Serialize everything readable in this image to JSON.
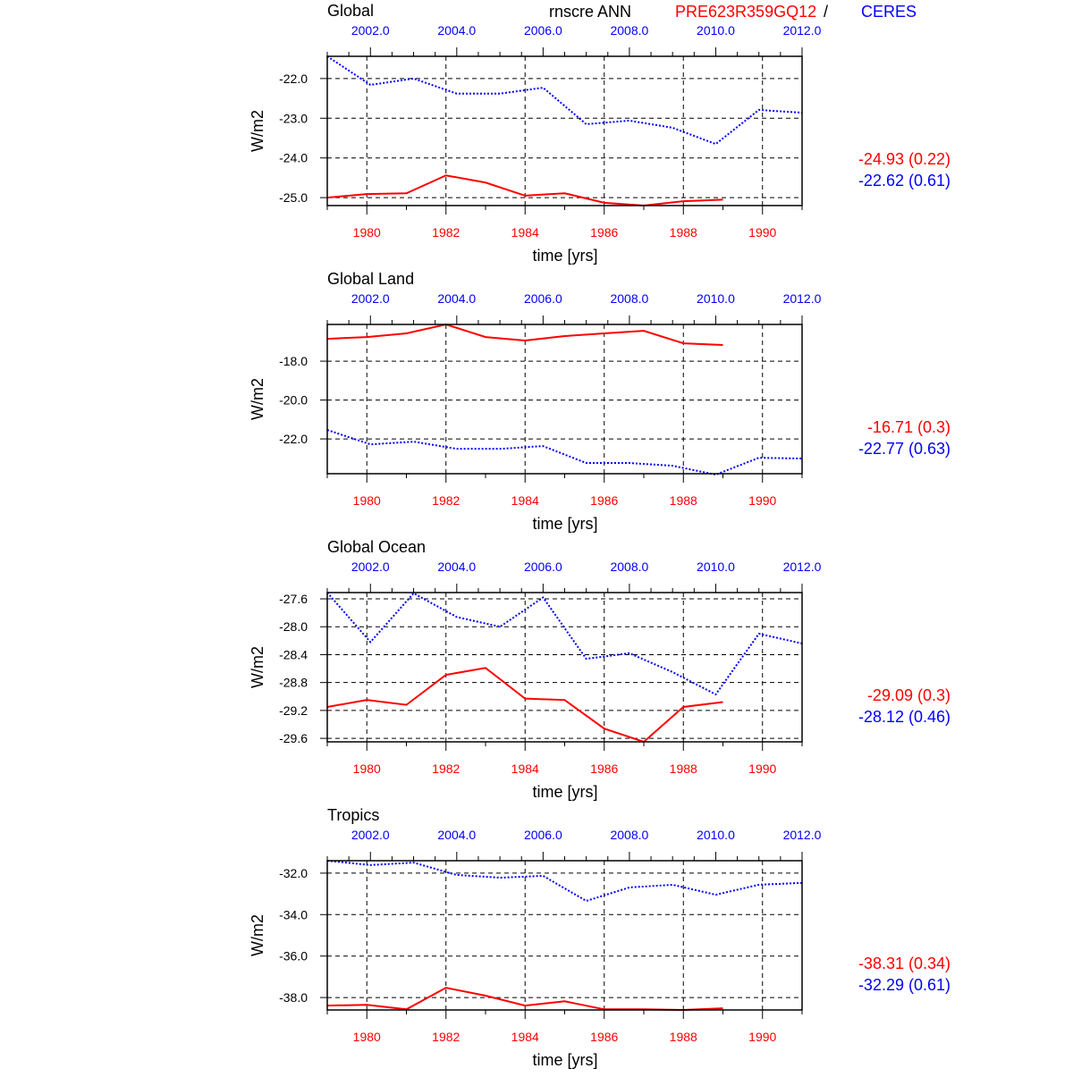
{
  "chart_data": [
    {
      "type": "line",
      "title": "Global",
      "ylabel": "W/m2",
      "xlabel": "time [yrs]",
      "ylim": [
        -25.2,
        -21.44
      ],
      "yticks": [
        -22.0,
        -23.0,
        -24.0,
        -25.0
      ],
      "ytick_labels": [
        "-22.0",
        "-23.0",
        "-24.0",
        "-25.0"
      ],
      "series": [
        {
          "name": "PRE623R359GQ12",
          "color": "#ff0000",
          "style": "solid",
          "x": [
            1979,
            1980,
            1981,
            1982,
            1983,
            1984,
            1985,
            1986,
            1987,
            1988,
            1989
          ],
          "values": [
            -25.0,
            -24.91,
            -24.89,
            -24.44,
            -24.62,
            -24.95,
            -24.89,
            -25.13,
            -25.2,
            -25.09,
            -25.05
          ],
          "stat": "-24.93 (0.22)"
        },
        {
          "name": "CERES",
          "color": "#0000ff",
          "style": "dotted",
          "x": [
            2001,
            2002,
            2003,
            2004,
            2005,
            2006,
            2007,
            2008,
            2009,
            2010,
            2011,
            2012
          ],
          "values": [
            -21.44,
            -22.16,
            -22.0,
            -22.38,
            -22.38,
            -22.23,
            -23.15,
            -23.06,
            -23.24,
            -23.65,
            -22.79,
            -22.86
          ],
          "stat": "-22.62 (0.61)"
        }
      ]
    },
    {
      "type": "line",
      "title": "Global Land",
      "ylabel": "W/m2",
      "xlabel": "time [yrs]",
      "ylim": [
        -23.79,
        -16.11
      ],
      "yticks": [
        -18.0,
        -20.0,
        -22.0
      ],
      "ytick_labels": [
        "-18.0",
        "-20.0",
        "-22.0"
      ],
      "series": [
        {
          "name": "PRE623R359GQ12",
          "color": "#ff0000",
          "style": "solid",
          "x": [
            1979,
            1980,
            1981,
            1982,
            1983,
            1984,
            1985,
            1986,
            1987,
            1988,
            1989
          ],
          "values": [
            -16.85,
            -16.76,
            -16.57,
            -16.11,
            -16.76,
            -16.94,
            -16.71,
            -16.57,
            -16.44,
            -17.08,
            -17.17
          ],
          "stat": "-16.71 (0.3)"
        },
        {
          "name": "CERES",
          "color": "#0000ff",
          "style": "dotted",
          "x": [
            2001,
            2002,
            2003,
            2004,
            2005,
            2006,
            2007,
            2008,
            2009,
            2010,
            2011,
            2012
          ],
          "values": [
            -21.54,
            -22.28,
            -22.14,
            -22.51,
            -22.51,
            -22.37,
            -23.24,
            -23.24,
            -23.38,
            -23.84,
            -22.97,
            -23.01
          ],
          "stat": "-22.77 (0.63)"
        }
      ]
    },
    {
      "type": "line",
      "title": "Global Ocean",
      "ylabel": "W/m2",
      "xlabel": "time [yrs]",
      "ylim": [
        -29.65,
        -27.51
      ],
      "yticks": [
        -27.6,
        -28.0,
        -28.4,
        -28.8,
        -29.2,
        -29.6
      ],
      "ytick_labels": [
        "-27.6",
        "-28.0",
        "-28.4",
        "-28.8",
        "-29.2",
        "-29.6"
      ],
      "series": [
        {
          "name": "PRE623R359GQ12",
          "color": "#ff0000",
          "style": "solid",
          "x": [
            1979,
            1980,
            1981,
            1982,
            1983,
            1984,
            1985,
            1986,
            1987,
            1988,
            1989
          ],
          "values": [
            -29.15,
            -29.05,
            -29.12,
            -28.69,
            -28.59,
            -29.03,
            -29.05,
            -29.46,
            -29.65,
            -29.15,
            -29.08
          ],
          "stat": "-29.09 (0.3)"
        },
        {
          "name": "CERES",
          "color": "#0000ff",
          "style": "dotted",
          "x": [
            2001,
            2002,
            2003,
            2004,
            2005,
            2006,
            2007,
            2008,
            2009,
            2010,
            2011,
            2012
          ],
          "values": [
            -27.51,
            -28.22,
            -27.52,
            -27.86,
            -28.0,
            -27.58,
            -28.46,
            -28.38,
            -28.65,
            -28.97,
            -28.1,
            -28.24
          ],
          "stat": "-28.12 (0.46)"
        }
      ]
    },
    {
      "type": "line",
      "title": "Tropics",
      "ylabel": "W/m2",
      "xlabel": "time [yrs]",
      "ylim": [
        -38.6,
        -31.4
      ],
      "yticks": [
        -32.0,
        -34.0,
        -36.0,
        -38.0
      ],
      "ytick_labels": [
        "-32.0",
        "-34.0",
        "-36.0",
        "-38.0"
      ],
      "series": [
        {
          "name": "PRE623R359GQ12",
          "color": "#ff0000",
          "style": "solid",
          "x": [
            1979,
            1980,
            1981,
            1982,
            1983,
            1984,
            1985,
            1986,
            1987,
            1988,
            1989
          ],
          "values": [
            -38.39,
            -38.35,
            -38.57,
            -37.53,
            -37.91,
            -38.39,
            -38.18,
            -38.57,
            -38.57,
            -38.6,
            -38.52
          ],
          "stat": "-38.31 (0.34)"
        },
        {
          "name": "CERES",
          "color": "#0000ff",
          "style": "dotted",
          "x": [
            2001,
            2002,
            2003,
            2004,
            2005,
            2006,
            2007,
            2008,
            2009,
            2010,
            2011,
            2012
          ],
          "values": [
            -31.4,
            -31.61,
            -31.49,
            -32.09,
            -32.22,
            -32.13,
            -33.34,
            -32.69,
            -32.56,
            -33.04,
            -32.56,
            -32.47
          ],
          "stat": "-32.29 (0.61)"
        }
      ]
    }
  ],
  "header": {
    "variable": "rnscre ANN",
    "model": "PRE623R359GQ12",
    "slash": "/",
    "obs": "CERES"
  },
  "axes": {
    "bottom_range": [
      1979,
      1991
    ],
    "bottom_ticks": [
      "1980",
      "1982",
      "1984",
      "1986",
      "1988",
      "1990"
    ],
    "top_range": [
      2001,
      2012
    ],
    "top_ticks": [
      "2002.0",
      "2004.0",
      "2006.0",
      "2008.0",
      "2010.0",
      "2012.0"
    ]
  }
}
